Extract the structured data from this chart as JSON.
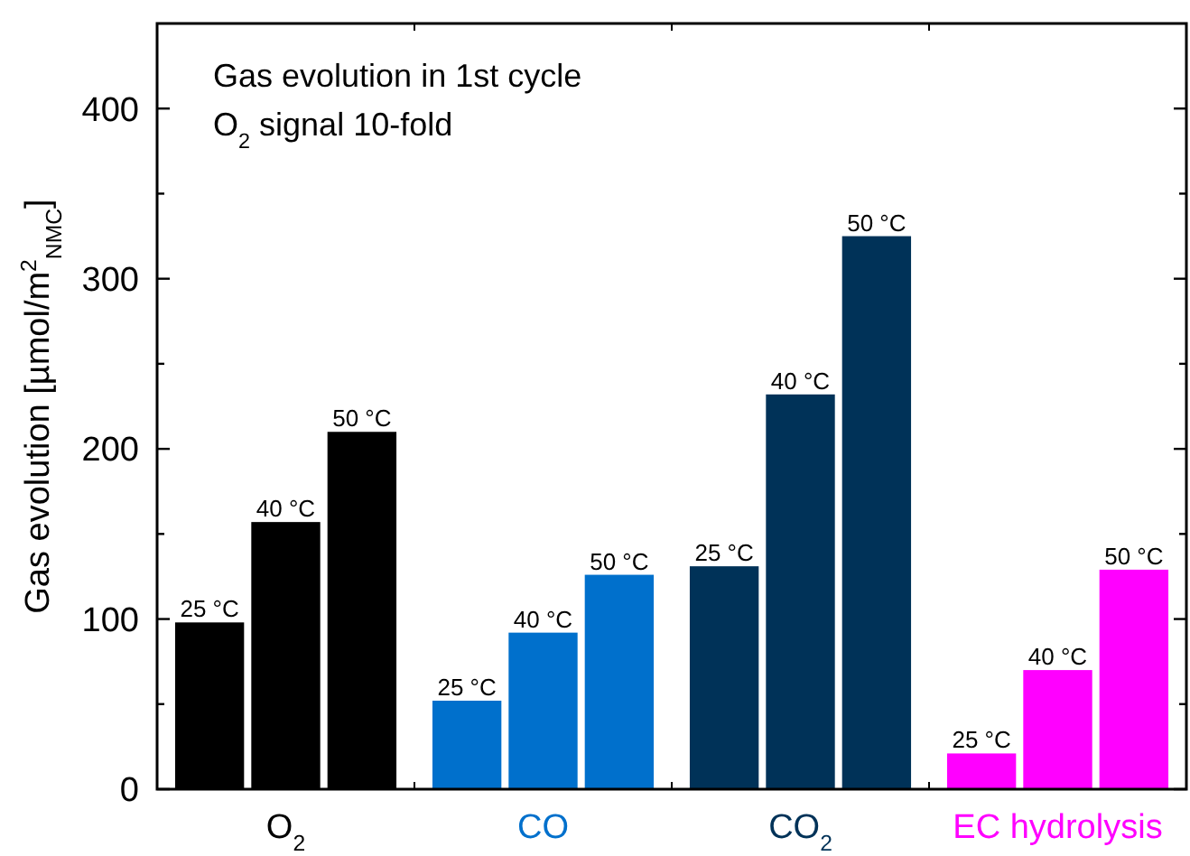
{
  "chart_data": {
    "type": "bar",
    "ylabel": "Gas evolution [µmol/m$^{2}$$_{NMC}$]",
    "annotations": [
      "Gas evolution in 1st cycle",
      "O$_{2}$ signal 10-fold"
    ],
    "categories": [
      "O$_{2}$",
      "CO",
      "CO$_{2}$",
      "EC hydrolysis"
    ],
    "series": [
      {
        "name": "25 °C",
        "colors": [
          "#000000",
          "#0070cc",
          "#003258",
          "#ff00ff"
        ],
        "values": [
          98,
          52,
          131,
          21
        ]
      },
      {
        "name": "40 °C",
        "colors": [
          "#000000",
          "#0070cc",
          "#003258",
          "#ff00ff"
        ],
        "values": [
          157,
          92,
          232,
          70
        ]
      },
      {
        "name": "50 °C",
        "colors": [
          "#000000",
          "#0070cc",
          "#003258",
          "#ff00ff"
        ],
        "values": [
          210,
          126,
          325,
          129
        ]
      }
    ],
    "ylim": [
      0,
      450
    ],
    "yticks": [
      0,
      {
        "value": 50,
        "label": null
      },
      100,
      {
        "value": 150,
        "label": null
      },
      200,
      {
        "value": 250,
        "label": null
      },
      300,
      {
        "value": 350,
        "label": null
      },
      400
    ],
    "grid": false
  }
}
